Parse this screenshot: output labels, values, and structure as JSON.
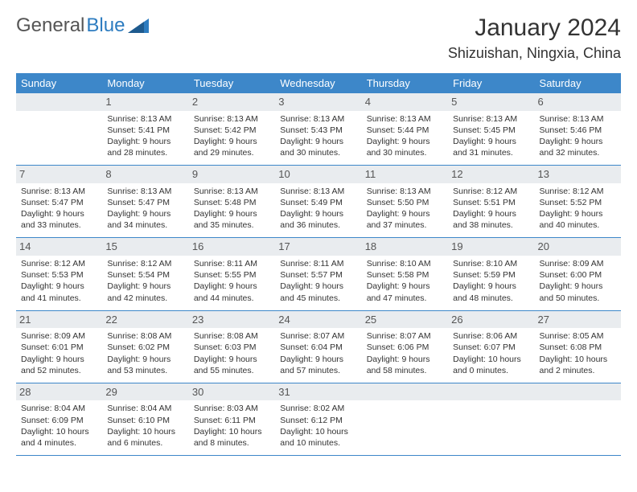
{
  "logo": {
    "text1": "General",
    "text2": "Blue"
  },
  "title": "January 2024",
  "location": "Shizuishan, Ningxia, China",
  "colors": {
    "header_bg": "#3d87c9",
    "header_text": "#ffffff",
    "daynum_bg": "#e9ecef",
    "border": "#3d87c9",
    "logo_blue": "#2d7cc0",
    "body_text": "#333333",
    "background": "#ffffff"
  },
  "weekdays": [
    "Sunday",
    "Monday",
    "Tuesday",
    "Wednesday",
    "Thursday",
    "Friday",
    "Saturday"
  ],
  "weeks": [
    [
      {
        "day": "",
        "sunrise": "",
        "sunset": "",
        "daylight1": "",
        "daylight2": ""
      },
      {
        "day": "1",
        "sunrise": "Sunrise: 8:13 AM",
        "sunset": "Sunset: 5:41 PM",
        "daylight1": "Daylight: 9 hours",
        "daylight2": "and 28 minutes."
      },
      {
        "day": "2",
        "sunrise": "Sunrise: 8:13 AM",
        "sunset": "Sunset: 5:42 PM",
        "daylight1": "Daylight: 9 hours",
        "daylight2": "and 29 minutes."
      },
      {
        "day": "3",
        "sunrise": "Sunrise: 8:13 AM",
        "sunset": "Sunset: 5:43 PM",
        "daylight1": "Daylight: 9 hours",
        "daylight2": "and 30 minutes."
      },
      {
        "day": "4",
        "sunrise": "Sunrise: 8:13 AM",
        "sunset": "Sunset: 5:44 PM",
        "daylight1": "Daylight: 9 hours",
        "daylight2": "and 30 minutes."
      },
      {
        "day": "5",
        "sunrise": "Sunrise: 8:13 AM",
        "sunset": "Sunset: 5:45 PM",
        "daylight1": "Daylight: 9 hours",
        "daylight2": "and 31 minutes."
      },
      {
        "day": "6",
        "sunrise": "Sunrise: 8:13 AM",
        "sunset": "Sunset: 5:46 PM",
        "daylight1": "Daylight: 9 hours",
        "daylight2": "and 32 minutes."
      }
    ],
    [
      {
        "day": "7",
        "sunrise": "Sunrise: 8:13 AM",
        "sunset": "Sunset: 5:47 PM",
        "daylight1": "Daylight: 9 hours",
        "daylight2": "and 33 minutes."
      },
      {
        "day": "8",
        "sunrise": "Sunrise: 8:13 AM",
        "sunset": "Sunset: 5:47 PM",
        "daylight1": "Daylight: 9 hours",
        "daylight2": "and 34 minutes."
      },
      {
        "day": "9",
        "sunrise": "Sunrise: 8:13 AM",
        "sunset": "Sunset: 5:48 PM",
        "daylight1": "Daylight: 9 hours",
        "daylight2": "and 35 minutes."
      },
      {
        "day": "10",
        "sunrise": "Sunrise: 8:13 AM",
        "sunset": "Sunset: 5:49 PM",
        "daylight1": "Daylight: 9 hours",
        "daylight2": "and 36 minutes."
      },
      {
        "day": "11",
        "sunrise": "Sunrise: 8:13 AM",
        "sunset": "Sunset: 5:50 PM",
        "daylight1": "Daylight: 9 hours",
        "daylight2": "and 37 minutes."
      },
      {
        "day": "12",
        "sunrise": "Sunrise: 8:12 AM",
        "sunset": "Sunset: 5:51 PM",
        "daylight1": "Daylight: 9 hours",
        "daylight2": "and 38 minutes."
      },
      {
        "day": "13",
        "sunrise": "Sunrise: 8:12 AM",
        "sunset": "Sunset: 5:52 PM",
        "daylight1": "Daylight: 9 hours",
        "daylight2": "and 40 minutes."
      }
    ],
    [
      {
        "day": "14",
        "sunrise": "Sunrise: 8:12 AM",
        "sunset": "Sunset: 5:53 PM",
        "daylight1": "Daylight: 9 hours",
        "daylight2": "and 41 minutes."
      },
      {
        "day": "15",
        "sunrise": "Sunrise: 8:12 AM",
        "sunset": "Sunset: 5:54 PM",
        "daylight1": "Daylight: 9 hours",
        "daylight2": "and 42 minutes."
      },
      {
        "day": "16",
        "sunrise": "Sunrise: 8:11 AM",
        "sunset": "Sunset: 5:55 PM",
        "daylight1": "Daylight: 9 hours",
        "daylight2": "and 44 minutes."
      },
      {
        "day": "17",
        "sunrise": "Sunrise: 8:11 AM",
        "sunset": "Sunset: 5:57 PM",
        "daylight1": "Daylight: 9 hours",
        "daylight2": "and 45 minutes."
      },
      {
        "day": "18",
        "sunrise": "Sunrise: 8:10 AM",
        "sunset": "Sunset: 5:58 PM",
        "daylight1": "Daylight: 9 hours",
        "daylight2": "and 47 minutes."
      },
      {
        "day": "19",
        "sunrise": "Sunrise: 8:10 AM",
        "sunset": "Sunset: 5:59 PM",
        "daylight1": "Daylight: 9 hours",
        "daylight2": "and 48 minutes."
      },
      {
        "day": "20",
        "sunrise": "Sunrise: 8:09 AM",
        "sunset": "Sunset: 6:00 PM",
        "daylight1": "Daylight: 9 hours",
        "daylight2": "and 50 minutes."
      }
    ],
    [
      {
        "day": "21",
        "sunrise": "Sunrise: 8:09 AM",
        "sunset": "Sunset: 6:01 PM",
        "daylight1": "Daylight: 9 hours",
        "daylight2": "and 52 minutes."
      },
      {
        "day": "22",
        "sunrise": "Sunrise: 8:08 AM",
        "sunset": "Sunset: 6:02 PM",
        "daylight1": "Daylight: 9 hours",
        "daylight2": "and 53 minutes."
      },
      {
        "day": "23",
        "sunrise": "Sunrise: 8:08 AM",
        "sunset": "Sunset: 6:03 PM",
        "daylight1": "Daylight: 9 hours",
        "daylight2": "and 55 minutes."
      },
      {
        "day": "24",
        "sunrise": "Sunrise: 8:07 AM",
        "sunset": "Sunset: 6:04 PM",
        "daylight1": "Daylight: 9 hours",
        "daylight2": "and 57 minutes."
      },
      {
        "day": "25",
        "sunrise": "Sunrise: 8:07 AM",
        "sunset": "Sunset: 6:06 PM",
        "daylight1": "Daylight: 9 hours",
        "daylight2": "and 58 minutes."
      },
      {
        "day": "26",
        "sunrise": "Sunrise: 8:06 AM",
        "sunset": "Sunset: 6:07 PM",
        "daylight1": "Daylight: 10 hours",
        "daylight2": "and 0 minutes."
      },
      {
        "day": "27",
        "sunrise": "Sunrise: 8:05 AM",
        "sunset": "Sunset: 6:08 PM",
        "daylight1": "Daylight: 10 hours",
        "daylight2": "and 2 minutes."
      }
    ],
    [
      {
        "day": "28",
        "sunrise": "Sunrise: 8:04 AM",
        "sunset": "Sunset: 6:09 PM",
        "daylight1": "Daylight: 10 hours",
        "daylight2": "and 4 minutes."
      },
      {
        "day": "29",
        "sunrise": "Sunrise: 8:04 AM",
        "sunset": "Sunset: 6:10 PM",
        "daylight1": "Daylight: 10 hours",
        "daylight2": "and 6 minutes."
      },
      {
        "day": "30",
        "sunrise": "Sunrise: 8:03 AM",
        "sunset": "Sunset: 6:11 PM",
        "daylight1": "Daylight: 10 hours",
        "daylight2": "and 8 minutes."
      },
      {
        "day": "31",
        "sunrise": "Sunrise: 8:02 AM",
        "sunset": "Sunset: 6:12 PM",
        "daylight1": "Daylight: 10 hours",
        "daylight2": "and 10 minutes."
      },
      {
        "day": "",
        "sunrise": "",
        "sunset": "",
        "daylight1": "",
        "daylight2": ""
      },
      {
        "day": "",
        "sunrise": "",
        "sunset": "",
        "daylight1": "",
        "daylight2": ""
      },
      {
        "day": "",
        "sunrise": "",
        "sunset": "",
        "daylight1": "",
        "daylight2": ""
      }
    ]
  ]
}
